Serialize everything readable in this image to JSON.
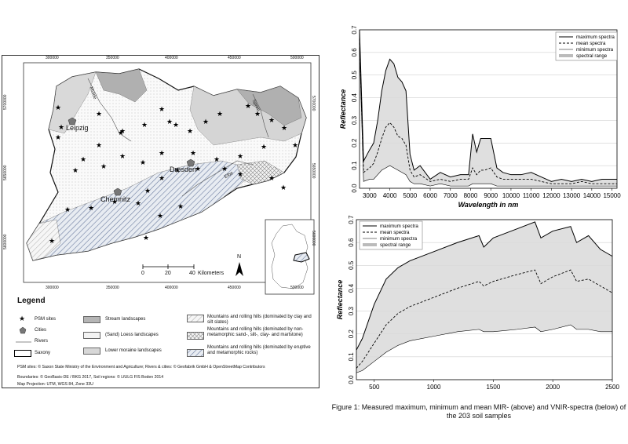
{
  "map": {
    "x_ticks_top": [
      "300000",
      "350000",
      "400000",
      "450000",
      "500000"
    ],
    "x_ticks_bottom": [
      "300000",
      "350000",
      "400000",
      "450000",
      "500000"
    ],
    "y_ticks_left": [
      "5700000",
      "5650000",
      "5600000"
    ],
    "y_ticks_right": [
      "5700000",
      "5650000",
      "5600000"
    ],
    "cities": [
      "Leipzig",
      "Dresden",
      "Chemnitz"
    ],
    "rivers": [
      "Mulde",
      "Spree",
      "Elbe"
    ],
    "scalebar": {
      "ticks": [
        "0",
        "20",
        "40"
      ],
      "unit": "Kilometers"
    },
    "north": "N"
  },
  "legend": {
    "title": "Legend",
    "items": [
      {
        "label": "PSM sites",
        "icon": "star-icon"
      },
      {
        "label": "Cities",
        "icon": "pentagon-icon"
      },
      {
        "label": "Rivers",
        "icon": "line-icon"
      },
      {
        "label": "Saxony",
        "icon": "outline-box-icon"
      },
      {
        "label": "Stream landscapes",
        "color": "#b5b5b5"
      },
      {
        "label": "(Sand) Loess landscapes",
        "color": "#f3f3f3"
      },
      {
        "label": "Lower moraine landscapes",
        "color": "#d7d7d7"
      },
      {
        "label": "Mountains and rolling hills (dominated by clay and silt slates)",
        "pattern": "diag-light"
      },
      {
        "label": "Mountains and rolling hills (dominated by non-metamorphic sand-, silt-, clay- and marlstone)",
        "pattern": "cross"
      },
      {
        "label": "Mountains and rolling hills (dominated by eruptive and metamorphic rocks)",
        "pattern": "diag-blue"
      }
    ],
    "credits": [
      "PSM sites: © Saxon State Ministry of the Environment and Agriculture; Rivers & cities: © Geofabrik GmbH & OpenStreetMap Contributors",
      "Boundaries: © GeoBasis-DE / BKG 2017, Soil regions: © LfULG FIS Boden 2014",
      "Map Projection: UTM, WGS 84, Zone 33U"
    ]
  },
  "chart_data": [
    {
      "type": "area",
      "xlabel": "Wavelength in nm",
      "ylabel": "Reflectance",
      "xlim": [
        2500,
        15250
      ],
      "ylim": [
        0,
        0.7
      ],
      "x_ticks": [
        3000,
        4000,
        5000,
        6000,
        7000,
        8000,
        9000,
        10000,
        11000,
        12000,
        13000,
        14000,
        15000
      ],
      "y_ticks": [
        0.0,
        0.1,
        0.2,
        0.3,
        0.4,
        0.5,
        0.6,
        0.7
      ],
      "legend": [
        "maximum spectra",
        "mean spectra",
        "minimum spectra",
        "spectral range"
      ],
      "legend_position": "top-right",
      "grid": "horizontal",
      "x": [
        2500,
        2700,
        3000,
        3200,
        3400,
        3600,
        3800,
        4000,
        4200,
        4400,
        4600,
        4800,
        5000,
        5200,
        5500,
        6000,
        6500,
        7000,
        7500,
        7900,
        8100,
        8300,
        8500,
        8700,
        9000,
        9300,
        9600,
        10000,
        10500,
        11000,
        11500,
        12000,
        12500,
        13000,
        13500,
        14000,
        14500,
        15000,
        15250
      ],
      "series": [
        {
          "name": "maximum spectra",
          "values": [
            0.7,
            0.12,
            0.17,
            0.2,
            0.3,
            0.43,
            0.52,
            0.57,
            0.55,
            0.49,
            0.47,
            0.43,
            0.15,
            0.08,
            0.1,
            0.04,
            0.07,
            0.05,
            0.06,
            0.06,
            0.24,
            0.16,
            0.22,
            0.22,
            0.22,
            0.09,
            0.07,
            0.06,
            0.06,
            0.07,
            0.05,
            0.03,
            0.04,
            0.03,
            0.04,
            0.03,
            0.04,
            0.04,
            0.04
          ]
        },
        {
          "name": "mean spectra",
          "values": [
            0.66,
            0.07,
            0.09,
            0.11,
            0.16,
            0.22,
            0.27,
            0.29,
            0.27,
            0.23,
            0.22,
            0.19,
            0.08,
            0.05,
            0.06,
            0.03,
            0.04,
            0.03,
            0.04,
            0.04,
            0.09,
            0.06,
            0.08,
            0.08,
            0.09,
            0.05,
            0.04,
            0.04,
            0.04,
            0.04,
            0.03,
            0.02,
            0.02,
            0.02,
            0.03,
            0.02,
            0.02,
            0.02,
            0.02
          ]
        },
        {
          "name": "minimum spectra",
          "values": [
            0.62,
            0.03,
            0.04,
            0.04,
            0.06,
            0.08,
            0.09,
            0.1,
            0.09,
            0.08,
            0.07,
            0.06,
            0.03,
            0.02,
            0.02,
            0.01,
            0.02,
            0.01,
            0.01,
            0.01,
            0.02,
            0.02,
            0.02,
            0.02,
            0.02,
            0.01,
            0.01,
            0.01,
            0.01,
            0.01,
            0.01,
            0.01,
            0.01,
            0.01,
            0.01,
            0.01,
            0.01,
            0.01,
            0.01
          ]
        }
      ]
    },
    {
      "type": "area",
      "xlabel": "Wavelength in nm",
      "ylabel": "Reflectance",
      "xlim": [
        350,
        2500
      ],
      "ylim": [
        0,
        0.7
      ],
      "x_ticks": [
        500,
        1000,
        1500,
        2000,
        2500
      ],
      "y_ticks": [
        0.0,
        0.1,
        0.2,
        0.3,
        0.4,
        0.5,
        0.6,
        0.7
      ],
      "legend": [
        "maximum spectra",
        "mean spectra",
        "minimum spectra",
        "spectral range"
      ],
      "legend_position": "top-left",
      "grid": "horizontal",
      "x": [
        350,
        400,
        500,
        600,
        700,
        800,
        1000,
        1200,
        1380,
        1420,
        1500,
        1700,
        1850,
        1900,
        2000,
        2150,
        2200,
        2300,
        2400,
        2500
      ],
      "series": [
        {
          "name": "maximum spectra",
          "values": [
            0.13,
            0.18,
            0.33,
            0.44,
            0.49,
            0.52,
            0.56,
            0.6,
            0.63,
            0.58,
            0.62,
            0.66,
            0.69,
            0.62,
            0.65,
            0.67,
            0.6,
            0.63,
            0.57,
            0.54
          ]
        },
        {
          "name": "mean spectra",
          "values": [
            0.05,
            0.08,
            0.16,
            0.24,
            0.29,
            0.32,
            0.36,
            0.4,
            0.43,
            0.41,
            0.43,
            0.46,
            0.48,
            0.42,
            0.45,
            0.48,
            0.43,
            0.44,
            0.41,
            0.38
          ]
        },
        {
          "name": "minimum spectra",
          "values": [
            0.03,
            0.04,
            0.08,
            0.12,
            0.15,
            0.17,
            0.19,
            0.21,
            0.22,
            0.21,
            0.21,
            0.22,
            0.23,
            0.21,
            0.22,
            0.24,
            0.22,
            0.22,
            0.21,
            0.21
          ]
        }
      ]
    }
  ],
  "caption": "Figure 1: Measured maximum, minimum and mean MIR- (above) and VNIR-spectra (below) of the 203 soil samples"
}
